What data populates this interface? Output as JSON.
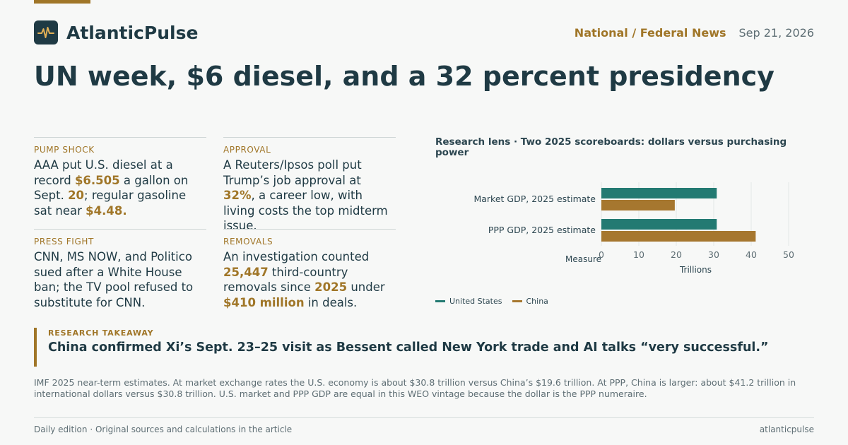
{
  "brand": {
    "name": "AtlanticPulse",
    "logo_icon": "pulse-icon"
  },
  "header": {
    "section": "National / Federal News",
    "date": "Sep 21, 2026"
  },
  "headline": "UN week, $6 diesel, and a 32 percent presidency",
  "cards": [
    {
      "label": "PUMP SHOCK",
      "parts": [
        {
          "t": "AAA put U.S. diesel at a record "
        },
        {
          "t": "$6.505",
          "h": true
        },
        {
          "t": " a gallon on Sept. "
        },
        {
          "t": "20",
          "h": true
        },
        {
          "t": "; regular gasoline sat near "
        },
        {
          "t": "$4.48.",
          "h": true
        }
      ]
    },
    {
      "label": "APPROVAL",
      "parts": [
        {
          "t": "A Reuters/Ipsos poll put Trump’s job approval at "
        },
        {
          "t": "32%",
          "h": true
        },
        {
          "t": ", a career low, with living costs the top midterm issue."
        }
      ]
    },
    {
      "label": "PRESS FIGHT",
      "parts": [
        {
          "t": "CNN, MS NOW, and Politico sued after a White House ban; the TV pool refused to substitute for CNN."
        }
      ]
    },
    {
      "label": "REMOVALS",
      "parts": [
        {
          "t": "An investigation counted "
        },
        {
          "t": "25,447",
          "h": true
        },
        {
          "t": " third-country removals since "
        },
        {
          "t": "2025",
          "h": true
        },
        {
          "t": " under "
        },
        {
          "t": "$410 million",
          "h": true
        },
        {
          "t": " in deals."
        }
      ]
    }
  ],
  "chart_data": {
    "type": "bar",
    "orientation": "horizontal",
    "title": "Research lens · Two 2025 scoreboards: dollars versus purchasing power",
    "categories": [
      "Market GDP, 2025 estimate",
      "PPP GDP, 2025 estimate"
    ],
    "series": [
      {
        "name": "United States",
        "values": [
          30.8,
          30.8
        ],
        "color": "#237a72"
      },
      {
        "name": "China",
        "values": [
          19.6,
          41.2
        ],
        "color": "#a6772f"
      }
    ],
    "xlabel": "Trillions",
    "ylabel": "Measure",
    "xlim": [
      0,
      50
    ],
    "xticks": [
      "0",
      "10",
      "20",
      "30",
      "40",
      "50"
    ],
    "grid": true,
    "legend": "bottom-left"
  },
  "takeaway": {
    "label": "RESEARCH TAKEAWAY",
    "text": "China confirmed Xi’s Sept. 23–25 visit as Bessent called New York trade and AI talks “very successful.”"
  },
  "note": "IMF 2025 near-term estimates. At market exchange rates the U.S. economy is about $30.8 trillion versus China’s $19.6 trillion. At PPP, China is larger: about $41.2 trillion in international dollars versus $30.8 trillion. U.S. market and PPP GDP are equal in this WEO vintage because the dollar is the PPP numeraire.",
  "footer": {
    "left": "Daily edition · Original sources and calculations in the article",
    "right": "atlanticpulse"
  }
}
